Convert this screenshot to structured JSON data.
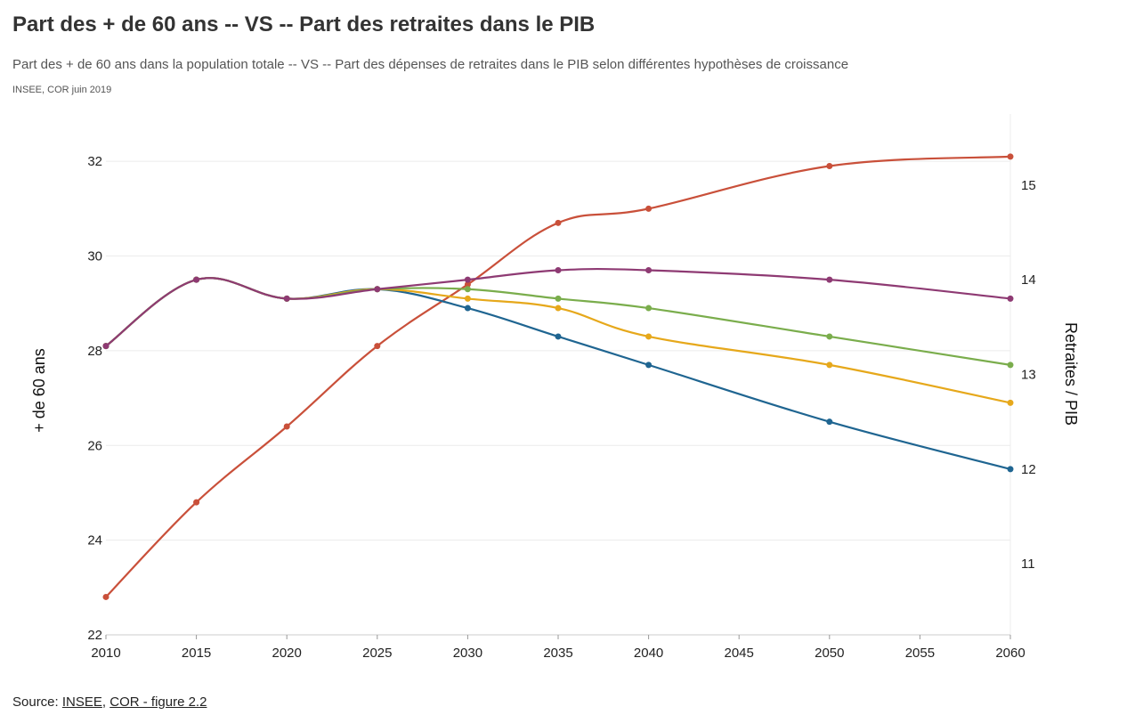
{
  "header": {
    "title": "Part des + de 60 ans -- VS -- Part des retraites dans le PIB",
    "subtitle": "Part des + de 60 ans dans la population totale -- VS -- Part des dépenses de retraites dans le PIB selon différentes hypothèses de croissance",
    "note": "INSEE, COR juin 2019"
  },
  "footer": {
    "source_label": "Source:",
    "link1": "INSEE",
    "separator": ",",
    "link2": "COR - figure 2.2"
  },
  "chart_data": {
    "type": "line",
    "x": [
      2010,
      2015,
      2020,
      2025,
      2030,
      2035,
      2040,
      2050,
      2060
    ],
    "x_ticks": [
      2010,
      2015,
      2020,
      2025,
      2030,
      2035,
      2040,
      2045,
      2050,
      2055,
      2060
    ],
    "xlim": [
      2010,
      2060
    ],
    "left_axis": {
      "label": "+ de 60 ans",
      "ylim": [
        22,
        33
      ],
      "ticks": [
        22,
        24,
        26,
        28,
        30,
        32
      ]
    },
    "right_axis": {
      "label": "Retraites / PIB",
      "ylim": [
        10.25,
        15.75
      ],
      "ticks": [
        11,
        12,
        13,
        14,
        15
      ]
    },
    "grid": true,
    "series": [
      {
        "axis": "left",
        "color": "#c9503a",
        "values": [
          22.8,
          24.8,
          26.4,
          28.1,
          29.4,
          30.7,
          31.0,
          31.9,
          32.1
        ]
      },
      {
        "axis": "right",
        "color": "#8e3a73",
        "values": [
          13.3,
          14.0,
          13.8,
          13.9,
          14.0,
          14.1,
          14.1,
          14.0,
          13.8
        ]
      },
      {
        "axis": "right",
        "color": "#7aad4c",
        "values": [
          13.3,
          14.0,
          13.8,
          13.9,
          13.9,
          13.8,
          13.7,
          13.4,
          13.1
        ]
      },
      {
        "axis": "right",
        "color": "#e6a81b",
        "values": [
          13.3,
          14.0,
          13.8,
          13.9,
          13.8,
          13.7,
          13.4,
          13.1,
          12.7
        ]
      },
      {
        "axis": "right",
        "color": "#1f6591",
        "values": [
          13.3,
          14.0,
          13.8,
          13.9,
          13.7,
          13.4,
          13.1,
          12.5,
          12.0
        ]
      }
    ]
  }
}
